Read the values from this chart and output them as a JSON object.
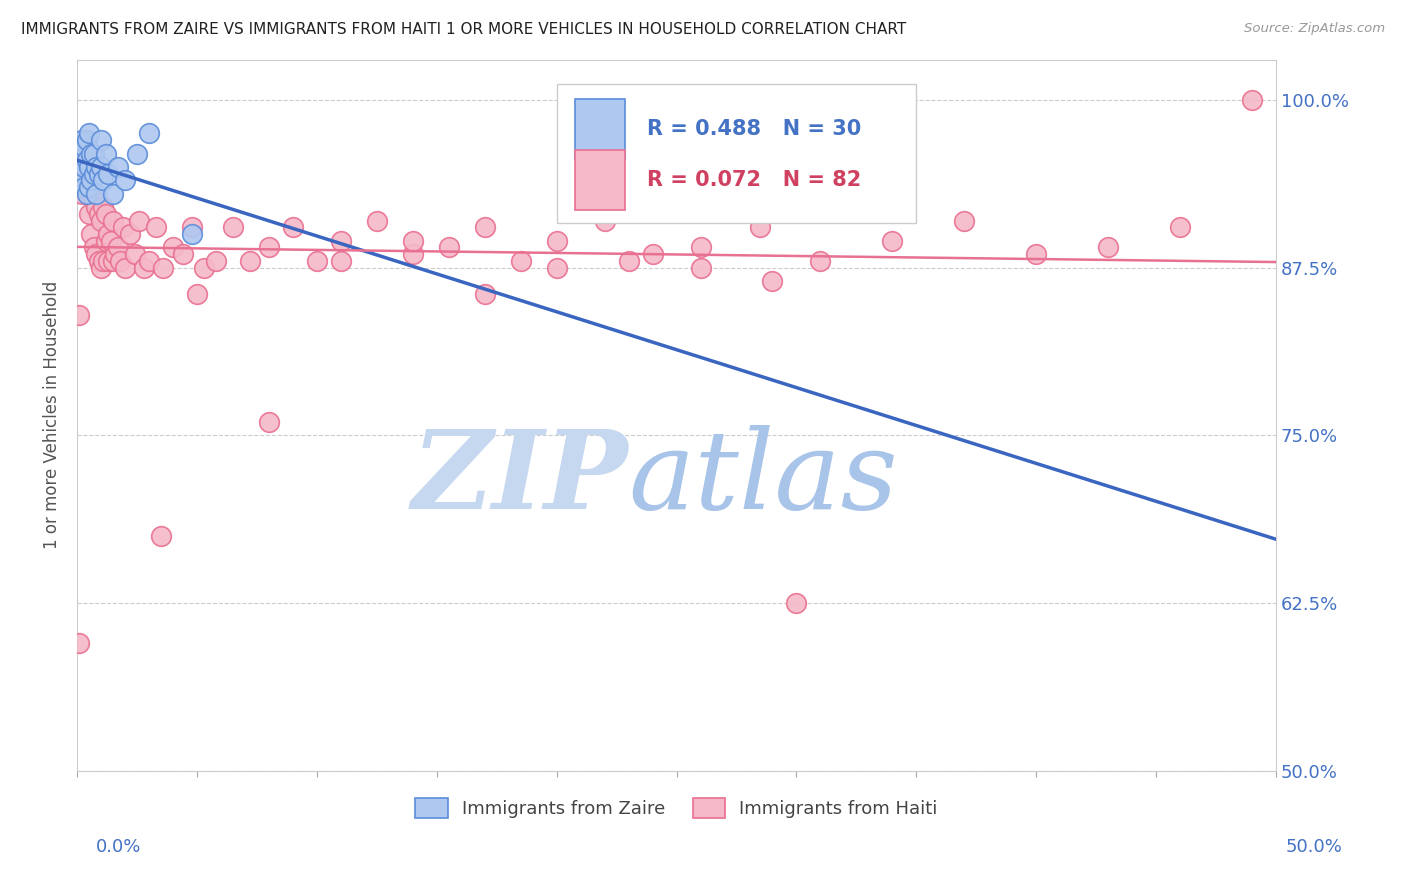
{
  "title": "IMMIGRANTS FROM ZAIRE VS IMMIGRANTS FROM HAITI 1 OR MORE VEHICLES IN HOUSEHOLD CORRELATION CHART",
  "source": "Source: ZipAtlas.com",
  "ylabel": "1 or more Vehicles in Household",
  "yticks": [
    50.0,
    62.5,
    75.0,
    87.5,
    100.0
  ],
  "ytick_labels": [
    "50.0%",
    "62.5%",
    "75.0%",
    "87.5%",
    "100.0%"
  ],
  "xlim": [
    0.0,
    0.5
  ],
  "ylim": [
    50.0,
    103.0
  ],
  "legend_zaire": "Immigrants from Zaire",
  "legend_haiti": "Immigrants from Haiti",
  "R_zaire": 0.488,
  "N_zaire": 30,
  "R_haiti": 0.072,
  "N_haiti": 82,
  "color_zaire_fill": "#aec8f0",
  "color_zaire_edge": "#5b8dd9",
  "color_haiti_fill": "#f5b8c8",
  "color_haiti_edge": "#e87090",
  "color_zaire_line": "#3a65c0",
  "color_haiti_line": "#e87090",
  "watermark_zip_color": "#c5d8f0",
  "watermark_atlas_color": "#a8c4e8",
  "background_color": "#ffffff",
  "zaire_x": [
    0.001,
    0.002,
    0.002,
    0.003,
    0.003,
    0.003,
    0.004,
    0.004,
    0.004,
    0.005,
    0.005,
    0.005,
    0.006,
    0.006,
    0.007,
    0.007,
    0.008,
    0.008,
    0.009,
    0.01,
    0.01,
    0.011,
    0.012,
    0.013,
    0.015,
    0.017,
    0.02,
    0.025,
    0.03,
    0.048
  ],
  "zaire_y": [
    94.0,
    95.5,
    97.0,
    93.5,
    95.0,
    96.5,
    93.0,
    95.5,
    97.0,
    93.5,
    95.0,
    97.5,
    94.0,
    96.0,
    94.5,
    96.0,
    93.0,
    95.0,
    94.5,
    95.0,
    97.0,
    94.0,
    96.0,
    94.5,
    93.0,
    95.0,
    94.0,
    96.0,
    97.5,
    90.0
  ],
  "haiti_x": [
    0.001,
    0.001,
    0.002,
    0.002,
    0.003,
    0.003,
    0.004,
    0.004,
    0.005,
    0.005,
    0.005,
    0.006,
    0.006,
    0.006,
    0.007,
    0.007,
    0.008,
    0.008,
    0.009,
    0.009,
    0.01,
    0.01,
    0.011,
    0.011,
    0.012,
    0.012,
    0.013,
    0.013,
    0.014,
    0.015,
    0.015,
    0.016,
    0.017,
    0.018,
    0.019,
    0.02,
    0.022,
    0.024,
    0.026,
    0.028,
    0.03,
    0.033,
    0.036,
    0.04,
    0.044,
    0.048,
    0.053,
    0.058,
    0.065,
    0.072,
    0.08,
    0.09,
    0.1,
    0.11,
    0.125,
    0.14,
    0.155,
    0.17,
    0.185,
    0.2,
    0.22,
    0.24,
    0.26,
    0.285,
    0.31,
    0.34,
    0.37,
    0.4,
    0.43,
    0.46,
    0.49,
    0.05,
    0.08,
    0.11,
    0.14,
    0.17,
    0.2,
    0.23,
    0.26,
    0.29,
    0.035,
    0.3
  ],
  "haiti_y": [
    59.5,
    84.0,
    93.0,
    96.5,
    95.0,
    97.0,
    93.5,
    95.5,
    91.5,
    94.0,
    96.0,
    90.0,
    93.0,
    96.0,
    89.0,
    92.5,
    88.5,
    92.0,
    88.0,
    91.5,
    87.5,
    91.0,
    88.0,
    92.0,
    89.5,
    91.5,
    88.0,
    90.0,
    89.5,
    88.0,
    91.0,
    88.5,
    89.0,
    88.0,
    90.5,
    87.5,
    90.0,
    88.5,
    91.0,
    87.5,
    88.0,
    90.5,
    87.5,
    89.0,
    88.5,
    90.5,
    87.5,
    88.0,
    90.5,
    88.0,
    89.0,
    90.5,
    88.0,
    89.5,
    91.0,
    88.5,
    89.0,
    90.5,
    88.0,
    89.5,
    91.0,
    88.5,
    89.0,
    90.5,
    88.0,
    89.5,
    91.0,
    88.5,
    89.0,
    90.5,
    100.0,
    85.5,
    76.0,
    88.0,
    89.5,
    85.5,
    87.5,
    88.0,
    87.5,
    86.5,
    67.5,
    62.5
  ]
}
